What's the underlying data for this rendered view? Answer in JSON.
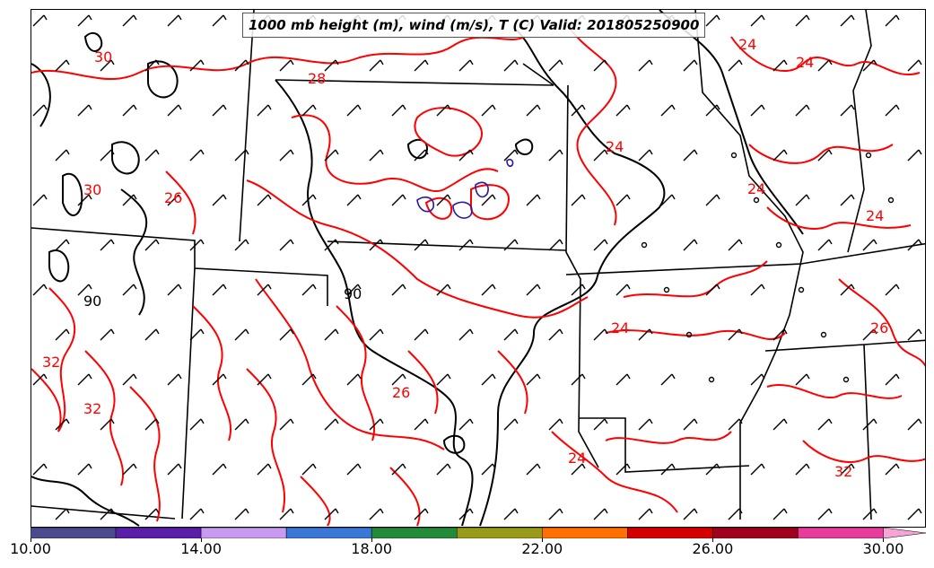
{
  "title": "1000 mb height (m), wind (m/s), T (C) Valid: 201805250900",
  "colorbar": {
    "tick_labels": [
      "10.00",
      "14.00",
      "18.00",
      "22.00",
      "26.00",
      "30.00"
    ],
    "range": [
      10,
      31
    ],
    "bins": [
      {
        "from": 10,
        "to": 12,
        "color": "#4a4a8c"
      },
      {
        "from": 12,
        "to": 14,
        "color": "#5a1fa8"
      },
      {
        "from": 14,
        "to": 16,
        "color": "#c89af0"
      },
      {
        "from": 16,
        "to": 18,
        "color": "#3a78d8"
      },
      {
        "from": 18,
        "to": 20,
        "color": "#238a3a"
      },
      {
        "from": 20,
        "to": 22,
        "color": "#9a9a1a"
      },
      {
        "from": 22,
        "to": 24,
        "color": "#ff7000"
      },
      {
        "from": 24,
        "to": 26,
        "color": "#d40000"
      },
      {
        "from": 26,
        "to": 28,
        "color": "#a0001e"
      },
      {
        "from": 28,
        "to": 30,
        "color": "#e83c9a"
      },
      {
        "from": 30,
        "to": 31,
        "color": "#f7a3d6"
      }
    ]
  },
  "contour_labels": {
    "temperature": [
      "30",
      "28",
      "30",
      "26",
      "24",
      "24",
      "24",
      "24",
      "24",
      "26",
      "24",
      "24",
      "32",
      "32",
      "32",
      "26"
    ],
    "height": [
      "90",
      "90"
    ]
  },
  "colors": {
    "temperature_contour": "#ff0000",
    "height_contour": "#000000",
    "wind_speed_contour": "#1a1a8c",
    "state_borders": "#000000"
  },
  "layers": [
    "temperature-contours",
    "height-contours",
    "wind-barbs",
    "state-borders"
  ]
}
